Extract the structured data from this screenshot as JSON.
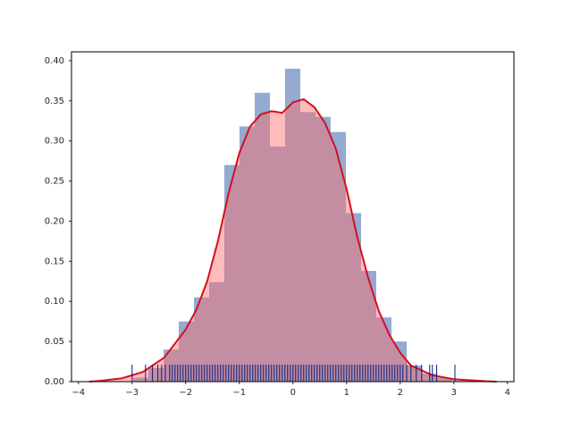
{
  "chart_data": {
    "type": "histogram",
    "bins": [
      -2.98,
      -2.697,
      -2.413,
      -2.13,
      -1.847,
      -1.563,
      -1.28,
      -0.997,
      -0.713,
      -0.43,
      -0.147,
      0.137,
      0.42,
      0.703,
      0.987,
      1.27,
      1.553,
      1.837,
      2.12,
      2.403,
      2.687,
      2.97
    ],
    "values": [
      0.005,
      0.017,
      0.04,
      0.075,
      0.105,
      0.124,
      0.27,
      0.318,
      0.36,
      0.293,
      0.39,
      0.336,
      0.33,
      0.311,
      0.21,
      0.138,
      0.08,
      0.05,
      0.02,
      0.01,
      0.005
    ],
    "color": "#4c72b0",
    "kde": {
      "color": "#d40f1e",
      "fill": "#ff6b6b",
      "x": [
        -3.8,
        -3.6,
        -3.2,
        -2.8,
        -2.4,
        -2.0,
        -1.8,
        -1.6,
        -1.4,
        -1.2,
        -1.0,
        -0.8,
        -0.6,
        -0.4,
        -0.2,
        0,
        0.2,
        0.4,
        0.6,
        0.8,
        1.0,
        1.2,
        1.4,
        1.6,
        1.8,
        2.0,
        2.2,
        2.6,
        3.0,
        3.6,
        3.8
      ],
      "values": [
        0,
        0.001,
        0.004,
        0.012,
        0.03,
        0.065,
        0.09,
        0.125,
        0.175,
        0.235,
        0.285,
        0.318,
        0.333,
        0.337,
        0.335,
        0.348,
        0.352,
        0.342,
        0.322,
        0.29,
        0.24,
        0.18,
        0.13,
        0.088,
        0.058,
        0.036,
        0.02,
        0.008,
        0.003,
        0.0005,
        0
      ]
    },
    "rug": {
      "color": "#001c7f",
      "x": [
        -3.0,
        -2.75,
        -2.62,
        -2.52,
        -2.45,
        -2.38,
        -2.3,
        -2.25,
        -2.2,
        -2.15,
        -2.1,
        -2.05,
        -2.0,
        -1.95,
        -1.9,
        -1.85,
        -1.8,
        -1.75,
        -1.7,
        -1.65,
        -1.6,
        -1.55,
        -1.5,
        -1.45,
        -1.4,
        -1.35,
        -1.3,
        -1.25,
        -1.2,
        -1.15,
        -1.1,
        -1.05,
        -1.0,
        -0.95,
        -0.9,
        -0.85,
        -0.8,
        -0.75,
        -0.7,
        -0.65,
        -0.6,
        -0.55,
        -0.5,
        -0.45,
        -0.4,
        -0.35,
        -0.3,
        -0.25,
        -0.2,
        -0.15,
        -0.1,
        -0.05,
        0,
        0.05,
        0.1,
        0.15,
        0.2,
        0.25,
        0.3,
        0.35,
        0.4,
        0.45,
        0.5,
        0.55,
        0.6,
        0.65,
        0.7,
        0.75,
        0.8,
        0.85,
        0.9,
        0.95,
        1.0,
        1.05,
        1.1,
        1.15,
        1.2,
        1.25,
        1.3,
        1.35,
        1.4,
        1.45,
        1.5,
        1.55,
        1.6,
        1.65,
        1.7,
        1.75,
        1.8,
        1.85,
        1.9,
        1.95,
        2.0,
        2.05,
        2.12,
        2.2,
        2.3,
        2.4,
        2.55,
        2.6,
        2.68,
        3.02
      ]
    },
    "xlim": [
      -4.13,
      4.12
    ],
    "ylim": [
      0,
      0.411
    ],
    "xticks": [
      {
        "value": -4,
        "label": "−4"
      },
      {
        "value": -3,
        "label": "−3"
      },
      {
        "value": -2,
        "label": "−2"
      },
      {
        "value": -1,
        "label": "−1"
      },
      0,
      1,
      2,
      3,
      4
    ],
    "yticks": [
      {
        "value": 0,
        "label": "0.00"
      },
      {
        "value": 0.05,
        "label": "0.05"
      },
      {
        "value": 0.1,
        "label": "0.10"
      },
      {
        "value": 0.15,
        "label": "0.15"
      },
      {
        "value": 0.2,
        "label": "0.20"
      },
      {
        "value": 0.25,
        "label": "0.25"
      },
      {
        "value": 0.3,
        "label": "0.30"
      },
      {
        "value": 0.35,
        "label": "0.35"
      },
      {
        "value": 0.4,
        "label": "0.40"
      }
    ]
  }
}
